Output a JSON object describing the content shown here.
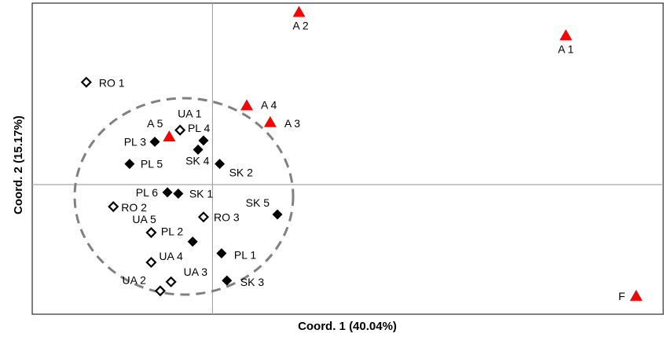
{
  "chart_data": {
    "type": "scatter",
    "xlabel": "Coord. 1 (40.04%)",
    "ylabel": "Coord. 2 (15.17%)",
    "xlim": [
      -1.0,
      2.5
    ],
    "ylim": [
      -1.0,
      1.4
    ],
    "grid": false,
    "legend": "none",
    "colors": {
      "red_triangle": "#ff0000",
      "black_diamond": "#000000",
      "open_diamond_stroke": "#000000",
      "dashed_circle": "#808080",
      "axis_line": "#a6a6a6",
      "frame": "#000000"
    },
    "series": [
      {
        "marker": "triangle",
        "color": "#ff0000",
        "points": [
          {
            "label": "A 1",
            "x": 1.96,
            "y": 1.15
          },
          {
            "label": "A 2",
            "x": 0.48,
            "y": 1.33
          },
          {
            "label": "A 3",
            "x": 0.32,
            "y": 0.48
          },
          {
            "label": "A 4",
            "x": 0.19,
            "y": 0.61
          },
          {
            "label": "A 5",
            "x": -0.24,
            "y": 0.37
          },
          {
            "label": "F",
            "x": 2.35,
            "y": -0.86
          }
        ]
      },
      {
        "marker": "diamond-filled",
        "color": "#000000",
        "points": [
          {
            "label": "PL 1",
            "x": 0.05,
            "y": -0.53
          },
          {
            "label": "PL 2",
            "x": -0.11,
            "y": -0.44
          },
          {
            "label": "PL 3",
            "x": -0.32,
            "y": 0.33
          },
          {
            "label": "PL 4",
            "x": -0.05,
            "y": 0.34
          },
          {
            "label": "PL 5",
            "x": -0.46,
            "y": 0.16
          },
          {
            "label": "PL 6",
            "x": -0.25,
            "y": -0.06
          },
          {
            "label": "SK 1",
            "x": -0.19,
            "y": -0.07
          },
          {
            "label": "SK 2",
            "x": 0.04,
            "y": 0.16
          },
          {
            "label": "SK 3",
            "x": 0.08,
            "y": -0.74
          },
          {
            "label": "SK 4",
            "x": -0.08,
            "y": 0.27
          },
          {
            "label": "SK 5",
            "x": 0.36,
            "y": -0.23
          }
        ]
      },
      {
        "marker": "diamond-open",
        "color": "#000000",
        "points": [
          {
            "label": "RO 1",
            "x": -0.7,
            "y": 0.79
          },
          {
            "label": "RO 2",
            "x": -0.55,
            "y": -0.17
          },
          {
            "label": "RO 3",
            "x": -0.05,
            "y": -0.25
          },
          {
            "label": "UA 1",
            "x": -0.18,
            "y": 0.42
          },
          {
            "label": "UA 2",
            "x": -0.29,
            "y": -0.82
          },
          {
            "label": "UA 3",
            "x": -0.23,
            "y": -0.75
          },
          {
            "label": "UA 4",
            "x": -0.34,
            "y": -0.6
          },
          {
            "label": "UA 5",
            "x": -0.34,
            "y": -0.37
          }
        ]
      }
    ]
  }
}
